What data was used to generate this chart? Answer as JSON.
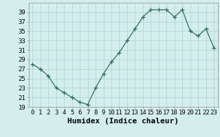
{
  "x": [
    0,
    1,
    2,
    3,
    4,
    5,
    6,
    7,
    8,
    9,
    10,
    11,
    12,
    13,
    14,
    15,
    16,
    17,
    18,
    19,
    20,
    21,
    22,
    23
  ],
  "y": [
    28.0,
    27.0,
    25.5,
    23.0,
    22.0,
    21.0,
    20.0,
    19.5,
    23.0,
    26.0,
    28.5,
    30.5,
    33.0,
    35.5,
    38.0,
    39.5,
    39.5,
    39.5,
    38.0,
    39.5,
    35.0,
    34.0,
    35.5,
    31.5
  ],
  "xlabel": "Humidex (Indice chaleur)",
  "ylim": [
    19,
    41
  ],
  "xlim": [
    -0.5,
    23.5
  ],
  "yticks": [
    19,
    21,
    23,
    25,
    27,
    29,
    31,
    33,
    35,
    37,
    39
  ],
  "xtick_labels": [
    "0",
    "1",
    "2",
    "3",
    "4",
    "5",
    "6",
    "7",
    "8",
    "9",
    "10",
    "11",
    "12",
    "13",
    "14",
    "15",
    "16",
    "17",
    "18",
    "19",
    "20",
    "21",
    "22",
    "23"
  ],
  "line_color": "#2e6b5e",
  "marker": "+",
  "marker_size": 4,
  "bg_color": "#d4eeee",
  "grid_color": "#b8d8d8",
  "tick_fontsize": 6.5,
  "xlabel_fontsize": 8,
  "figsize": [
    3.2,
    2.0
  ],
  "dpi": 100
}
